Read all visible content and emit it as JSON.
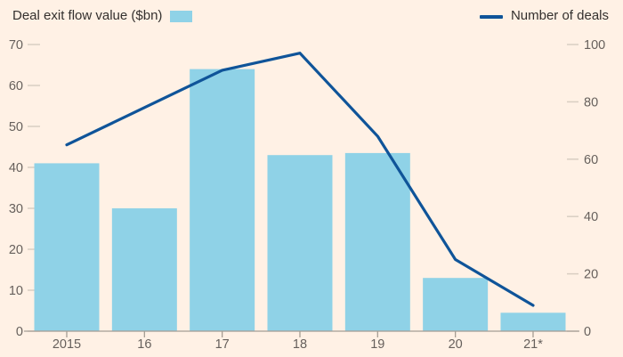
{
  "page": {
    "background": "#FFF1E5"
  },
  "legend": {
    "bars": {
      "label": "Deal exit flow value ($bn)",
      "swatch_color": "#8FD2E7"
    },
    "line": {
      "label": "Number of deals",
      "swatch_color": "#0F5499"
    }
  },
  "colors": {
    "background": "#FFF1E5",
    "bar": "#8FD2E7",
    "line": "#0F5499",
    "tick_text": "#66605C",
    "legend_text": "#33302E",
    "axis_line": "#A59D93",
    "tick_dash": "#D9CEC2"
  },
  "chart_data": {
    "type": "combo",
    "title": "",
    "categories": [
      "2015",
      "16",
      "17",
      "18",
      "19",
      "20",
      "21*"
    ],
    "series": [
      {
        "name": "Deal exit flow value ($bn)",
        "type": "bar",
        "axis": "left",
        "color": "#8FD2E7",
        "values": [
          41,
          30,
          64,
          43,
          43.5,
          13,
          4.5
        ]
      },
      {
        "name": "Number of deals",
        "type": "line",
        "axis": "right",
        "color": "#0F5499",
        "values": [
          65,
          78,
          91,
          97,
          68,
          25,
          9
        ]
      }
    ],
    "left_axis": {
      "label": "Deal exit flow value ($bn)",
      "range": [
        0,
        70
      ],
      "ticks": [
        0,
        10,
        20,
        30,
        40,
        50,
        60,
        70
      ]
    },
    "right_axis": {
      "label": "Number of deals",
      "range": [
        0,
        100
      ],
      "ticks": [
        0,
        20,
        40,
        60,
        80,
        100
      ]
    },
    "grid": false,
    "legend_position": "top"
  }
}
